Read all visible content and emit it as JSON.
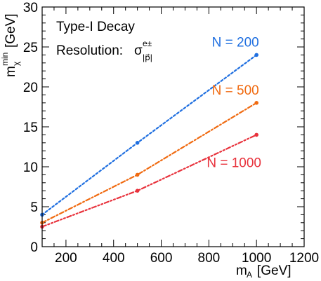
{
  "chart_data": {
    "type": "line",
    "title": "",
    "xlabel": {
      "main": "m",
      "sub": "A",
      "unit": "[GeV]"
    },
    "ylabel": {
      "main": "m",
      "sup": "min",
      "sub": "χ",
      "unit": "[GeV]"
    },
    "xlim": [
      100,
      1200
    ],
    "ylim": [
      0,
      30
    ],
    "x_ticks": [
      200,
      400,
      600,
      800,
      1000,
      1200
    ],
    "y_ticks": [
      0,
      5,
      10,
      15,
      20,
      25,
      30
    ],
    "grid": false,
    "annotations": {
      "decay": "Type-I Decay",
      "resolution": {
        "prefix": "Resolution:",
        "symbol": "σ",
        "sup": "e±",
        "sub": "|p⃗|"
      }
    },
    "series": [
      {
        "name": "N = 200",
        "color": "#1f6fe0",
        "dash": "3,3",
        "x": [
          100,
          500,
          1000
        ],
        "y": [
          4.0,
          13.0,
          24.0
        ]
      },
      {
        "name": "N = 500",
        "color": "#f06a10",
        "dash": "6,3,2,3",
        "x": [
          100,
          500,
          1000
        ],
        "y": [
          3.0,
          9.0,
          18.0
        ]
      },
      {
        "name": "N = 1000",
        "color": "#e8323c",
        "dash": "6,3,2,3,2,3",
        "x": [
          100,
          500,
          1000
        ],
        "y": [
          2.5,
          7.0,
          14.0
        ]
      }
    ]
  }
}
